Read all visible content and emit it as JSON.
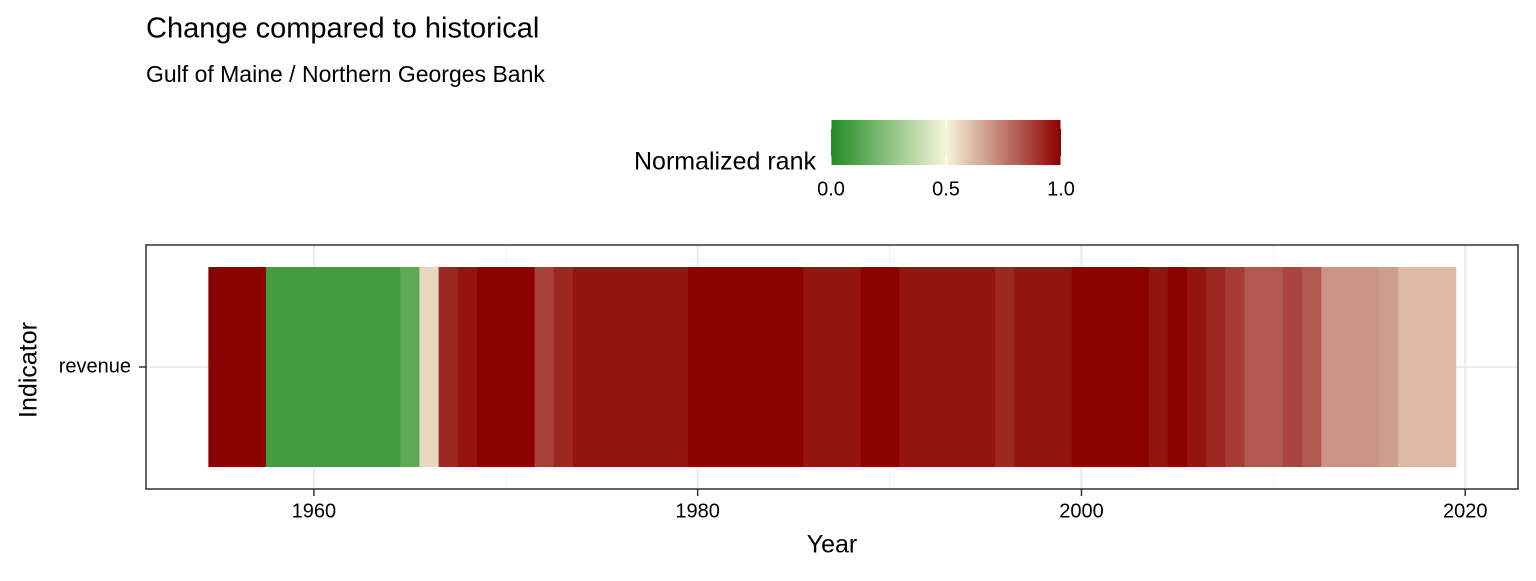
{
  "chart_data": {
    "type": "heatmap",
    "title": "Change compared to historical",
    "subtitle": "Gulf of Maine / Northern Georges Bank",
    "x_label": "Year",
    "y_label": "Indicator",
    "x": [
      1955,
      1956,
      1957,
      1958,
      1959,
      1960,
      1961,
      1962,
      1963,
      1964,
      1965,
      1966,
      1967,
      1968,
      1969,
      1970,
      1971,
      1972,
      1973,
      1974,
      1975,
      1976,
      1977,
      1978,
      1979,
      1980,
      1981,
      1982,
      1983,
      1984,
      1985,
      1986,
      1987,
      1988,
      1989,
      1990,
      1991,
      1992,
      1993,
      1994,
      1995,
      1996,
      1997,
      1998,
      1999,
      2000,
      2001,
      2002,
      2003,
      2004,
      2005,
      2006,
      2007,
      2008,
      2009,
      2010,
      2011,
      2012,
      2013,
      2014,
      2015,
      2016,
      2017,
      2018,
      2019
    ],
    "series": [
      {
        "name": "revenue",
        "values": [
          1,
          1,
          1,
          0.08,
          0.08,
          0.08,
          0.08,
          0.08,
          0.08,
          0.08,
          0.14,
          0.56,
          0.92,
          0.96,
          1,
          1,
          1,
          0.87,
          0.92,
          0.96,
          0.96,
          0.96,
          0.96,
          0.96,
          0.96,
          1,
          1,
          1,
          1,
          1,
          1,
          0.96,
          0.96,
          0.96,
          1,
          1,
          0.96,
          0.96,
          0.96,
          0.96,
          0.96,
          0.92,
          0.96,
          0.96,
          0.96,
          1,
          1,
          1,
          1,
          0.96,
          1,
          0.96,
          0.92,
          0.88,
          0.82,
          0.82,
          0.86,
          0.82,
          0.7,
          0.7,
          0.7,
          0.68,
          0.62,
          0.62,
          0.62
        ]
      }
    ],
    "xlim": [
      1951.25,
      2022.75
    ],
    "xticks": [
      1960,
      1980,
      2000,
      2020
    ],
    "xminor": [
      1970,
      1990,
      2010
    ],
    "grid": true,
    "legend": {
      "title": "Normalized rank",
      "low": "#228B22",
      "mid": "#F5F5DC",
      "high": "#8B0000",
      "limits": [
        0,
        1
      ],
      "ticks": [
        {
          "value": 0,
          "label": "0.0"
        },
        {
          "value": 0.5,
          "label": "0.5"
        },
        {
          "value": 1,
          "label": "1.0"
        }
      ]
    }
  }
}
